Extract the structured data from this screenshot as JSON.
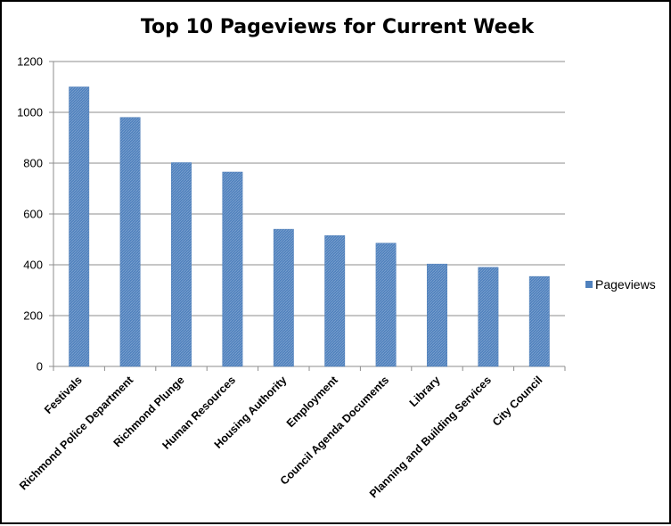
{
  "chart_data": {
    "type": "bar",
    "title": "Top 10 Pageviews for Current Week",
    "xlabel": "",
    "ylabel": "",
    "categories": [
      "Festivals",
      "Richmond Police Department",
      "Richmond Plunge",
      "Human Resources",
      "Housing Authority",
      "Employment",
      "Council Agenda Documents",
      "Library",
      "Planning and Building Services",
      "City Council"
    ],
    "series": [
      {
        "name": "Pageviews",
        "color": "#4F81BD",
        "values": [
          1100,
          980,
          802,
          765,
          540,
          515,
          485,
          403,
          390,
          354
        ]
      }
    ],
    "ylim": [
      0,
      1200
    ],
    "yticks": [
      0,
      200,
      400,
      600,
      800,
      1000,
      1200
    ],
    "grid": true,
    "legend_position": "right"
  }
}
